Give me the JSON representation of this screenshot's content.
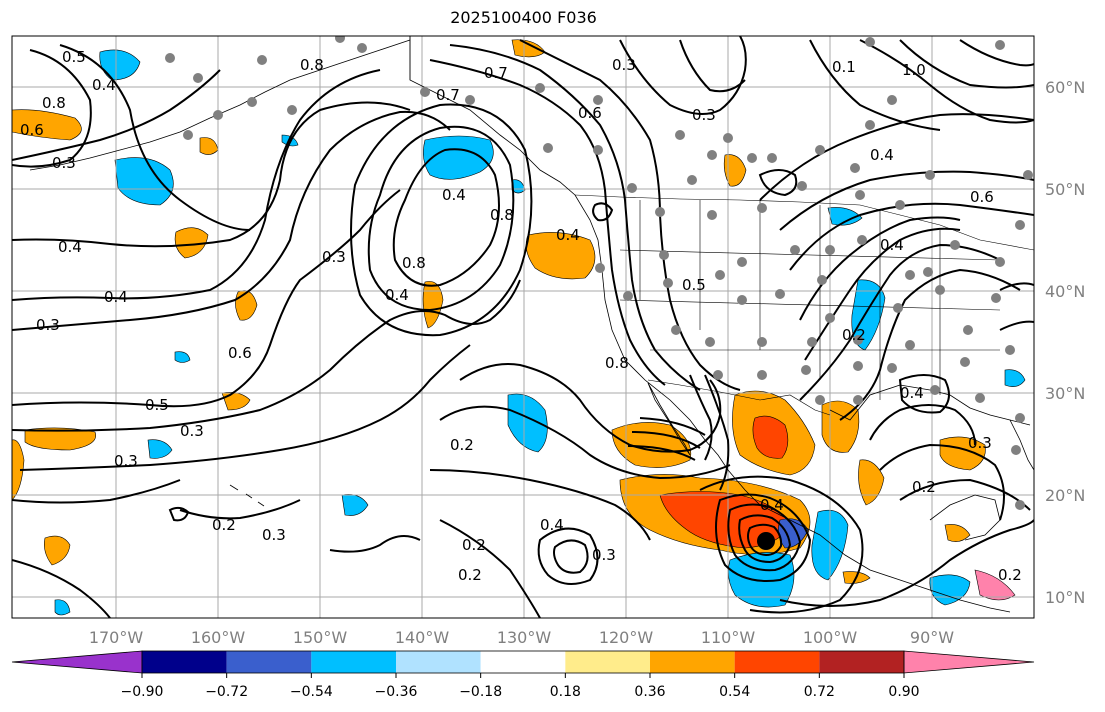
{
  "title": "2025100400 F036",
  "lon_labels": [
    "170°W",
    "160°W",
    "150°W",
    "140°W",
    "130°W",
    "120°W",
    "110°W",
    "100°W",
    "90°W"
  ],
  "lat_labels": [
    "60°N",
    "50°N",
    "40°N",
    "30°N",
    "20°N",
    "10°N"
  ],
  "contour_labels": [
    "0.5",
    "0.4",
    "0.8",
    "0.6",
    "0.3",
    "0.4",
    "0.4",
    "0.3",
    "0.6",
    "0.5",
    "0.3",
    "0.3",
    "0.2",
    "0.3",
    "0.8",
    "0.7",
    "0.3",
    "0.6",
    "0.3",
    "0.4",
    "0.8",
    "0.4",
    "0.3",
    "0.8",
    "0.4",
    "0.7",
    "0.5",
    "0.8",
    "0.2",
    "0.4",
    "0.2",
    "0.2",
    "0.3",
    "0.1",
    "1.0",
    "0.4",
    "0.6",
    "0.4",
    "0.2",
    "0.4",
    "0.3",
    "0.4",
    "0.2",
    "0.2"
  ],
  "colorbar": {
    "colors": [
      "#9932cc",
      "#00008b",
      "#3a5fcd",
      "#00bfff",
      "#b0e2ff",
      "#ffffff",
      "#ffec8b",
      "#ffa500",
      "#ff4500",
      "#b22222",
      "#ff82ab"
    ],
    "ticks": [
      "−0.90",
      "−0.72",
      "−0.54",
      "−0.36",
      "−0.18",
      "0.18",
      "0.36",
      "0.54",
      "0.72",
      "0.90"
    ]
  }
}
